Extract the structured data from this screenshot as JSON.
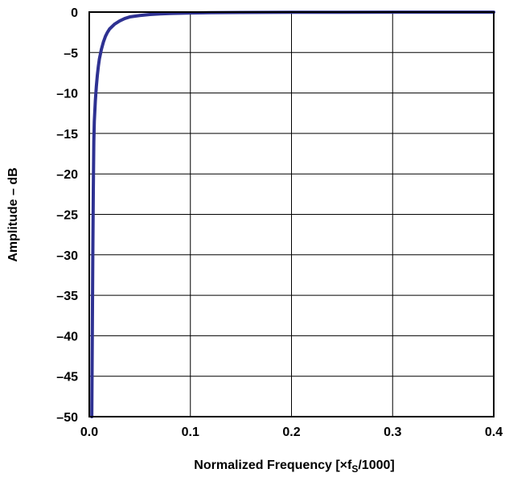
{
  "chart_data": {
    "type": "line",
    "xlabel": "Normalized Frequency [×f",
    "xlabel_sub": "S",
    "xlabel_suffix": "/1000]",
    "ylabel": "Amplitude – dB",
    "xlim": [
      0,
      0.4
    ],
    "ylim": [
      -50,
      0
    ],
    "x_ticks": [
      "0.0",
      "0.1",
      "0.2",
      "0.3",
      "0.4"
    ],
    "y_ticks": [
      "0",
      "–5",
      "–10",
      "–15",
      "–20",
      "–25",
      "–30",
      "–35",
      "–40",
      "–45",
      "–50"
    ],
    "grid": true,
    "series": [
      {
        "color": "#2e3192",
        "x": [
          0.0025,
          0.003,
          0.0035,
          0.004,
          0.0045,
          0.005,
          0.006,
          0.007,
          0.008,
          0.009,
          0.01,
          0.012,
          0.014,
          0.016,
          0.018,
          0.02,
          0.025,
          0.03,
          0.035,
          0.04,
          0.05,
          0.06,
          0.07,
          0.08,
          0.1,
          0.12,
          0.15,
          0.2,
          0.25,
          0.3,
          0.35,
          0.4
        ],
        "y": [
          -50,
          -40,
          -30,
          -22,
          -16,
          -13.5,
          -11,
          -9.2,
          -7.8,
          -6.7,
          -5.8,
          -4.6,
          -3.7,
          -3.0,
          -2.5,
          -2.1,
          -1.5,
          -1.1,
          -0.8,
          -0.6,
          -0.42,
          -0.3,
          -0.22,
          -0.17,
          -0.11,
          -0.08,
          -0.05,
          -0.03,
          -0.02,
          -0.015,
          -0.01,
          -0.01
        ]
      }
    ]
  }
}
